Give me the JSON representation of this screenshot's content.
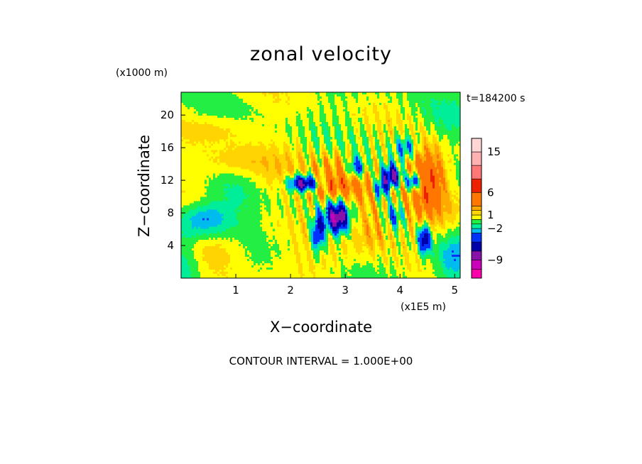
{
  "chart_data": {
    "type": "heatmap",
    "title": "zonal velocity",
    "xlabel": "X−coordinate",
    "ylabel": "Z−coordinate",
    "x_unit": "(x1E5 m)",
    "y_unit": "(x1000 m)",
    "time_label": "t=184200 s",
    "contour_interval": "CONTOUR INTERVAL = 1.000E+00",
    "xlim": [
      0.0,
      5.1
    ],
    "ylim": [
      0.0,
      22.8
    ],
    "xticks": [
      1,
      2,
      3,
      4,
      5
    ],
    "yticks": [
      4,
      8,
      12,
      16,
      20
    ],
    "colorbar": {
      "tick_labels": [
        "15",
        "6",
        "1",
        "−2",
        "−9"
      ],
      "levels": [
        -13,
        -11,
        -9,
        -7,
        -5,
        -3,
        -2,
        -1,
        0,
        1,
        2,
        3,
        6,
        9,
        12,
        15,
        18
      ],
      "colors": [
        "#ff00aa",
        "#cc00bb",
        "#8811aa",
        "#0000aa",
        "#0033ff",
        "#00bbee",
        "#00ee99",
        "#22ee44",
        "#ffff00",
        "#ffd400",
        "#ffaa00",
        "#ff7700",
        "#ee2200",
        "#ff7777",
        "#ffb0b0",
        "#ffd6d6"
      ]
    },
    "field": {
      "background_value": 0.15,
      "features": [
        {
          "x": 0.7,
          "z": 18.3,
          "sx": 0.45,
          "sz": 1.2,
          "a": 1.2
        },
        {
          "x": 1.0,
          "z": 14.2,
          "sx": 0.5,
          "sz": 1.4,
          "a": 1.8
        },
        {
          "x": 1.6,
          "z": 12.0,
          "sx": 0.45,
          "sz": 1.8,
          "a": 1.1
        },
        {
          "x": 1.0,
          "z": 10.0,
          "sx": 0.35,
          "sz": 2.5,
          "a": -1.2
        },
        {
          "x": 0.45,
          "z": 7.3,
          "sx": 0.3,
          "sz": 1.4,
          "a": -3.2
        },
        {
          "x": 0.55,
          "z": 3.5,
          "sx": 0.5,
          "sz": 1.4,
          "a": 1.4
        },
        {
          "x": 0.05,
          "z": 2.0,
          "sx": 0.25,
          "sz": 2.5,
          "a": -2.5
        },
        {
          "x": 2.25,
          "z": 11.6,
          "sx": 0.2,
          "sz": 0.7,
          "a": -10.5
        },
        {
          "x": 2.65,
          "z": 11.2,
          "sx": 0.4,
          "sz": 1.1,
          "a": 3.5
        },
        {
          "x": 2.85,
          "z": 7.4,
          "sx": 0.15,
          "sz": 1.3,
          "a": -10.0
        },
        {
          "x": 2.5,
          "z": 5.6,
          "sx": 0.08,
          "sz": 1.6,
          "a": -6.5
        },
        {
          "x": 3.2,
          "z": 13.6,
          "sx": 0.12,
          "sz": 0.9,
          "a": -6.0
        },
        {
          "x": 2.9,
          "z": 13.8,
          "sx": 0.3,
          "sz": 1.5,
          "a": 2.0
        },
        {
          "x": 3.35,
          "z": 10.2,
          "sx": 0.45,
          "sz": 2.8,
          "a": 2.2
        },
        {
          "x": 3.5,
          "z": 5.5,
          "sx": 0.25,
          "sz": 1.8,
          "a": 2.0
        },
        {
          "x": 3.65,
          "z": 11.0,
          "sx": 0.1,
          "sz": 1.0,
          "a": -6.0
        },
        {
          "x": 3.85,
          "z": 12.5,
          "sx": 0.12,
          "sz": 1.0,
          "a": -9.0
        },
        {
          "x": 4.25,
          "z": 11.8,
          "sx": 0.1,
          "sz": 0.8,
          "a": -8.5
        },
        {
          "x": 4.5,
          "z": 12.6,
          "sx": 0.25,
          "sz": 2.5,
          "a": 5.5
        },
        {
          "x": 4.1,
          "z": 16.0,
          "sx": 0.15,
          "sz": 1.0,
          "a": -4.0
        },
        {
          "x": 4.45,
          "z": 4.8,
          "sx": 0.08,
          "sz": 1.2,
          "a": -7.5
        },
        {
          "x": 3.9,
          "z": 7.8,
          "sx": 0.12,
          "sz": 1.2,
          "a": -4.5
        },
        {
          "x": 4.6,
          "z": 8.0,
          "sx": 0.35,
          "sz": 2.5,
          "a": 1.8
        },
        {
          "x": 5.0,
          "z": 2.2,
          "sx": 0.3,
          "sz": 2.0,
          "a": -3.2
        },
        {
          "x": 4.9,
          "z": 19.0,
          "sx": 0.3,
          "sz": 2.0,
          "a": -1.0
        },
        {
          "x": 2.2,
          "z": 1.8,
          "sx": 0.5,
          "sz": 1.5,
          "a": 0.9
        }
      ],
      "wave_packets": [
        {
          "x": 2.7,
          "z": 11.0,
          "sx": 0.55,
          "sz": 5.5,
          "kx": 28,
          "kz": 0.9,
          "a": 2.5
        },
        {
          "x": 4.0,
          "z": 11.0,
          "sx": 0.5,
          "sz": 6.0,
          "kx": 32,
          "kz": 1.0,
          "a": 2.4
        }
      ]
    }
  }
}
